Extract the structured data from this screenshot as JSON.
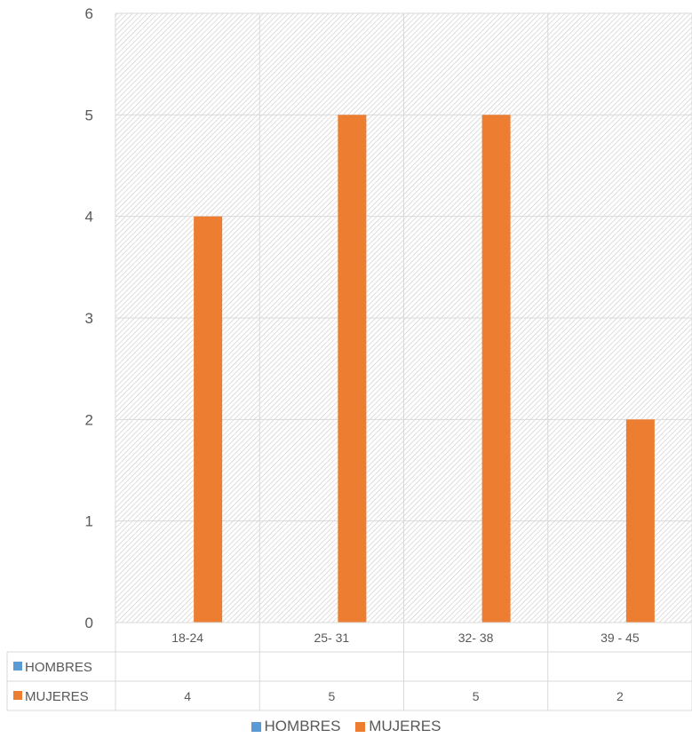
{
  "chart_data": {
    "type": "bar",
    "categories": [
      "18-24",
      "25- 31",
      "32- 38",
      "39 - 45"
    ],
    "series": [
      {
        "name": "HOMBRES",
        "values": [
          null,
          null,
          null,
          null
        ],
        "color": "#5B9BD5"
      },
      {
        "name": "MUJERES",
        "values": [
          4,
          5,
          5,
          2
        ],
        "color": "#ED7D31"
      }
    ],
    "ylim": [
      0,
      6
    ],
    "yticks": [
      0,
      1,
      2,
      3,
      4,
      5,
      6
    ],
    "grid": true,
    "plot_pattern": "diagonal-hatch",
    "data_table": true,
    "legend_position": "bottom"
  }
}
